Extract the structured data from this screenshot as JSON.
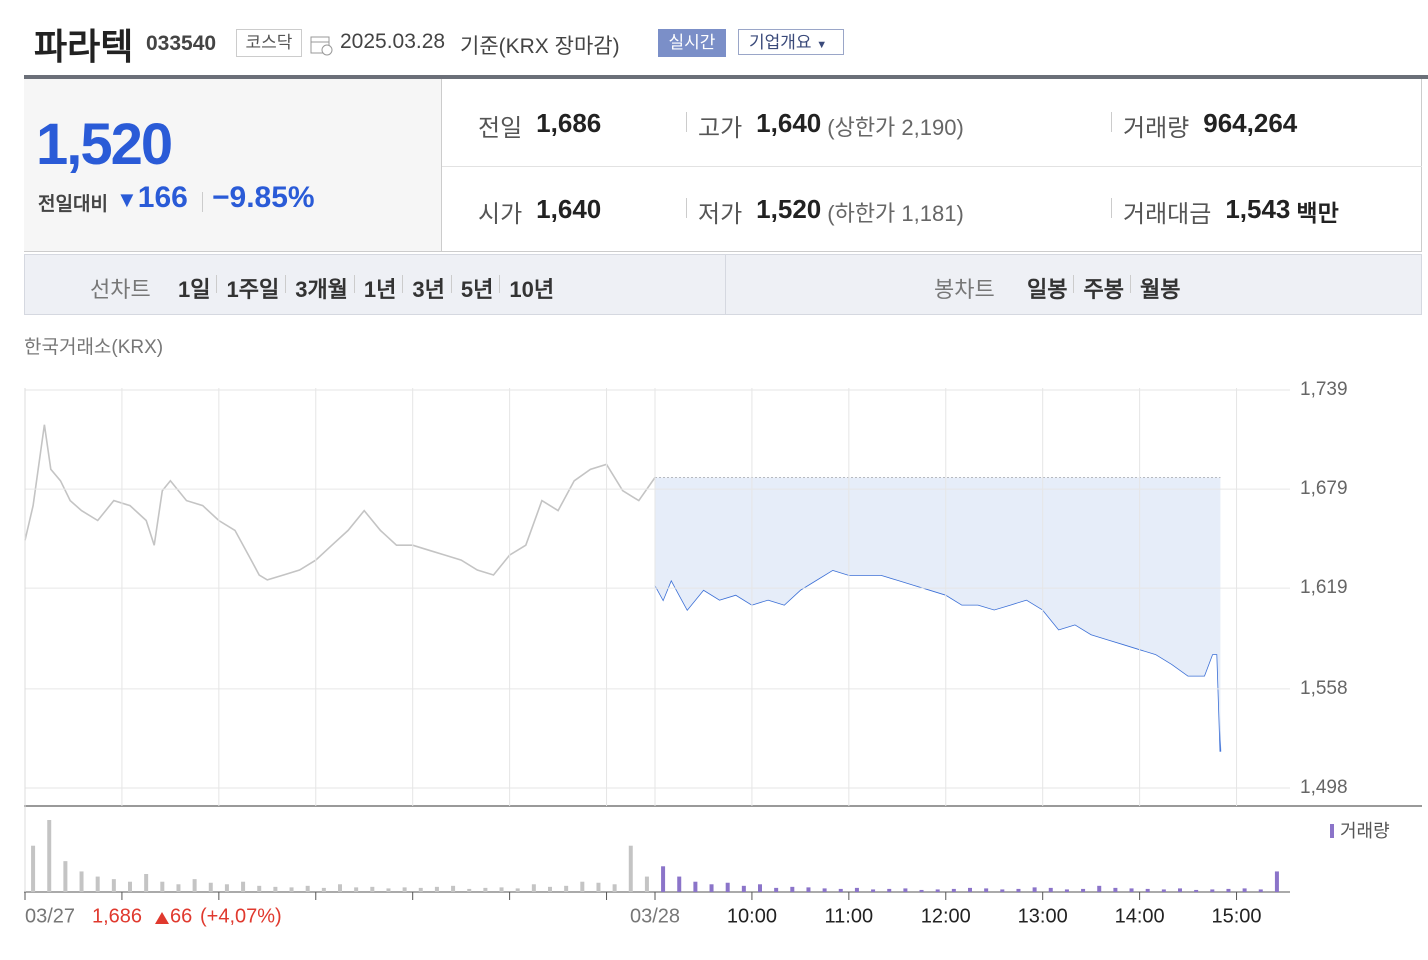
{
  "header": {
    "name": "파라텍",
    "code": "033540",
    "market": "코스닥",
    "date": "2025.03.28",
    "basis": "기준(KRX 장마감)",
    "realtime": "실시간",
    "company": "기업개요"
  },
  "summary": {
    "price": "1,520",
    "change_label": "전일대비",
    "change": "166",
    "change_pct": "−9.85%",
    "stats": [
      {
        "label": "전일",
        "value": "1,686"
      },
      {
        "label": "고가",
        "value": "1,640",
        "note": "(상한가 2,190)"
      },
      {
        "label": "거래량",
        "value": "964,264"
      },
      {
        "label": "시가",
        "value": "1,640"
      },
      {
        "label": "저가",
        "value": "1,520",
        "note": "(하한가 1,181)"
      },
      {
        "label": "거래대금",
        "value": "1,543",
        "unit": "백만"
      }
    ]
  },
  "tabs": {
    "line_label": "선차트",
    "line": [
      "1일",
      "1주일",
      "3개월",
      "1년",
      "3년",
      "5년",
      "10년"
    ],
    "candle_label": "봉차트",
    "candle": [
      "일봉",
      "주봉",
      "월봉"
    ]
  },
  "chart_data": {
    "type": "line",
    "source": "한국거래소(KRX)",
    "xlim": [
      0,
      780
    ],
    "xticks": [
      {
        "value": 0,
        "label": "03/27"
      },
      {
        "value": 60,
        "label": null
      },
      {
        "value": 120,
        "label": null
      },
      {
        "value": 180,
        "label": null
      },
      {
        "value": 240,
        "label": null
      },
      {
        "value": 300,
        "label": null
      },
      {
        "value": 360,
        "label": null
      },
      {
        "value": 390,
        "label": "03/28"
      },
      {
        "value": 450,
        "label": "10:00"
      },
      {
        "value": 510,
        "label": "11:00"
      },
      {
        "value": 570,
        "label": "12:00"
      },
      {
        "value": 630,
        "label": "13:00"
      },
      {
        "value": 690,
        "label": "14:00"
      },
      {
        "value": 750,
        "label": "15:00"
      }
    ],
    "ylim": [
      1498,
      1739
    ],
    "yticks": [
      {
        "value": 1739,
        "label": "1,739"
      },
      {
        "value": 1679,
        "label": "1,679"
      },
      {
        "value": 1619,
        "label": "1,619"
      },
      {
        "value": 1558,
        "label": "1,558"
      },
      {
        "value": 1498,
        "label": "1,498"
      }
    ],
    "reference_line": 1686,
    "series": [
      {
        "color": "#c4c4c4",
        "x": [
          0,
          5,
          12,
          16,
          22,
          28,
          35,
          45,
          55,
          65,
          75,
          80,
          85,
          90,
          100,
          110,
          120,
          130,
          140,
          145,
          150,
          160,
          170,
          180,
          190,
          200,
          210,
          220,
          230,
          240,
          250,
          260,
          270,
          280,
          290,
          300,
          310,
          320,
          330,
          340,
          350,
          360,
          370,
          380,
          390
        ],
        "values": [
          1648,
          1669,
          1718,
          1691,
          1684,
          1672,
          1666,
          1660,
          1672,
          1669,
          1660,
          1645,
          1678,
          1684,
          1672,
          1669,
          1660,
          1654,
          1636,
          1627,
          1624,
          1627,
          1630,
          1636,
          1645,
          1654,
          1666,
          1654,
          1645,
          1645,
          1642,
          1639,
          1636,
          1630,
          1627,
          1639,
          1645,
          1672,
          1666,
          1684,
          1691,
          1694,
          1678,
          1672,
          1686
        ]
      },
      {
        "color": "#3b6fd6",
        "fill": "#e6edf9",
        "x": [
          390,
          395,
          400,
          405,
          410,
          420,
          430,
          440,
          450,
          460,
          470,
          480,
          490,
          500,
          510,
          520,
          530,
          540,
          550,
          560,
          570,
          580,
          590,
          600,
          610,
          620,
          630,
          640,
          650,
          660,
          670,
          680,
          690,
          700,
          710,
          720,
          730,
          735,
          738,
          740
        ],
        "values": [
          1621,
          1612,
          1624,
          1615,
          1606,
          1618,
          1612,
          1615,
          1609,
          1612,
          1609,
          1618,
          1624,
          1630,
          1627,
          1627,
          1627,
          1624,
          1621,
          1618,
          1615,
          1609,
          1609,
          1606,
          1609,
          1612,
          1606,
          1594,
          1597,
          1591,
          1588,
          1585,
          1582,
          1579,
          1573,
          1566,
          1566,
          1579,
          1579,
          1520
        ]
      }
    ],
    "volume_legend": "거래량",
    "volume_series": [
      {
        "color": "#c4c4c4",
        "x": [
          5,
          15,
          25,
          35,
          45,
          55,
          65,
          75,
          85,
          95,
          105,
          115,
          125,
          135,
          145,
          155,
          165,
          175,
          185,
          195,
          205,
          215,
          225,
          235,
          245,
          255,
          265,
          275,
          285,
          295,
          305,
          315,
          325,
          335,
          345,
          355,
          365,
          375,
          385
        ],
        "values": [
          9000,
          14000,
          6000,
          4000,
          3000,
          2500,
          2000,
          3500,
          2000,
          1500,
          2500,
          1800,
          1500,
          2000,
          1200,
          1000,
          900,
          1200,
          800,
          1500,
          900,
          1000,
          700,
          900,
          800,
          1000,
          1200,
          600,
          800,
          900,
          700,
          1500,
          1000,
          1200,
          2000,
          1800,
          1500,
          9000,
          3000
        ]
      },
      {
        "color": "#8b74c9",
        "x": [
          395,
          405,
          415,
          425,
          435,
          445,
          455,
          465,
          475,
          485,
          495,
          505,
          515,
          525,
          535,
          545,
          555,
          565,
          575,
          585,
          595,
          605,
          615,
          625,
          635,
          645,
          655,
          665,
          675,
          685,
          695,
          705,
          715,
          725,
          735,
          745,
          755,
          765,
          775
        ],
        "values": [
          5000,
          3000,
          2000,
          1500,
          1800,
          1200,
          1500,
          800,
          1000,
          900,
          700,
          600,
          800,
          500,
          600,
          700,
          400,
          500,
          600,
          800,
          700,
          500,
          600,
          900,
          800,
          500,
          600,
          1200,
          800,
          700,
          600,
          500,
          700,
          400,
          500,
          600,
          700,
          500,
          4000
        ]
      }
    ],
    "prev_day": {
      "close": "1,686",
      "change": "66",
      "change_pct": "(+4,07%)"
    }
  }
}
